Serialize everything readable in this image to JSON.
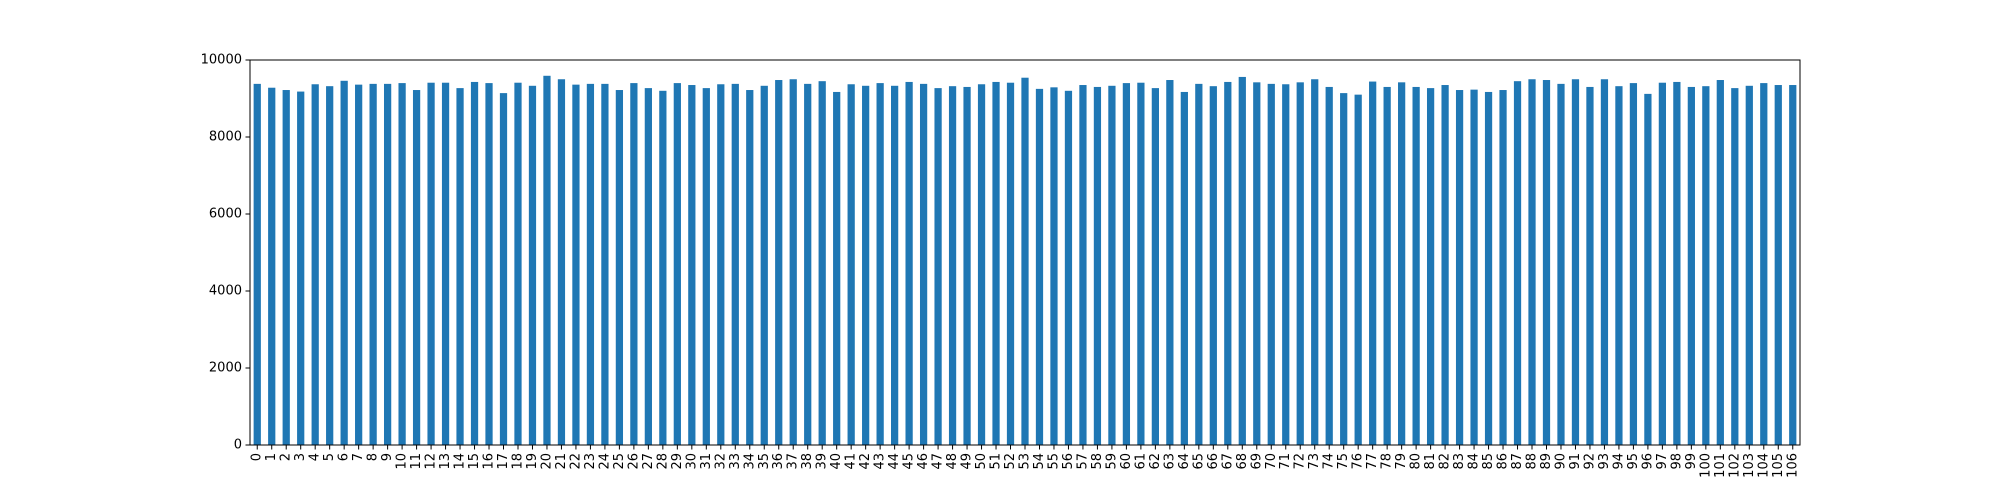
{
  "chart_data": {
    "type": "bar",
    "categories": [
      "0",
      "1",
      "2",
      "3",
      "4",
      "5",
      "6",
      "7",
      "8",
      "9",
      "10",
      "11",
      "12",
      "13",
      "14",
      "15",
      "16",
      "17",
      "18",
      "19",
      "20",
      "21",
      "22",
      "23",
      "24",
      "25",
      "26",
      "27",
      "28",
      "29",
      "30",
      "31",
      "32",
      "33",
      "34",
      "35",
      "36",
      "37",
      "38",
      "39",
      "40",
      "41",
      "42",
      "43",
      "44",
      "45",
      "46",
      "47",
      "48",
      "49",
      "50",
      "51",
      "52",
      "53",
      "54",
      "55",
      "56",
      "57",
      "58",
      "59",
      "60",
      "61",
      "62",
      "63",
      "64",
      "65",
      "66",
      "67",
      "68",
      "69",
      "70",
      "71",
      "72",
      "73",
      "74",
      "75",
      "76",
      "77",
      "78",
      "79",
      "80",
      "81",
      "82",
      "83",
      "84",
      "85",
      "86",
      "87",
      "88",
      "89",
      "90",
      "91",
      "92",
      "93",
      "94",
      "95",
      "96",
      "97",
      "98",
      "99",
      "100",
      "101",
      "102",
      "103",
      "104",
      "105",
      "106"
    ],
    "values": [
      9380,
      9280,
      9220,
      9180,
      9370,
      9320,
      9460,
      9360,
      9380,
      9380,
      9400,
      9220,
      9410,
      9410,
      9270,
      9430,
      9400,
      9140,
      9410,
      9330,
      9590,
      9500,
      9360,
      9380,
      9380,
      9220,
      9400,
      9270,
      9200,
      9400,
      9350,
      9270,
      9370,
      9380,
      9220,
      9330,
      9480,
      9500,
      9380,
      9450,
      9170,
      9370,
      9330,
      9400,
      9330,
      9430,
      9380,
      9270,
      9320,
      9300,
      9370,
      9430,
      9410,
      9540,
      9250,
      9290,
      9200,
      9350,
      9300,
      9330,
      9400,
      9410,
      9270,
      9480,
      9170,
      9380,
      9320,
      9430,
      9560,
      9420,
      9380,
      9370,
      9420,
      9500,
      9300,
      9140,
      9100,
      9440,
      9300,
      9420,
      9300,
      9270,
      9350,
      9220,
      9230,
      9170,
      9220,
      9450,
      9500,
      9480,
      9380,
      9500,
      9300,
      9500,
      9320,
      9400,
      9120,
      9410,
      9430,
      9300,
      9320,
      9480,
      9270,
      9330,
      9400,
      9350,
      9350
    ],
    "color": "#1f77b4",
    "ylim": [
      0,
      10000
    ],
    "yticks": [
      0,
      2000,
      4000,
      6000,
      8000,
      10000
    ],
    "grid": false
  }
}
